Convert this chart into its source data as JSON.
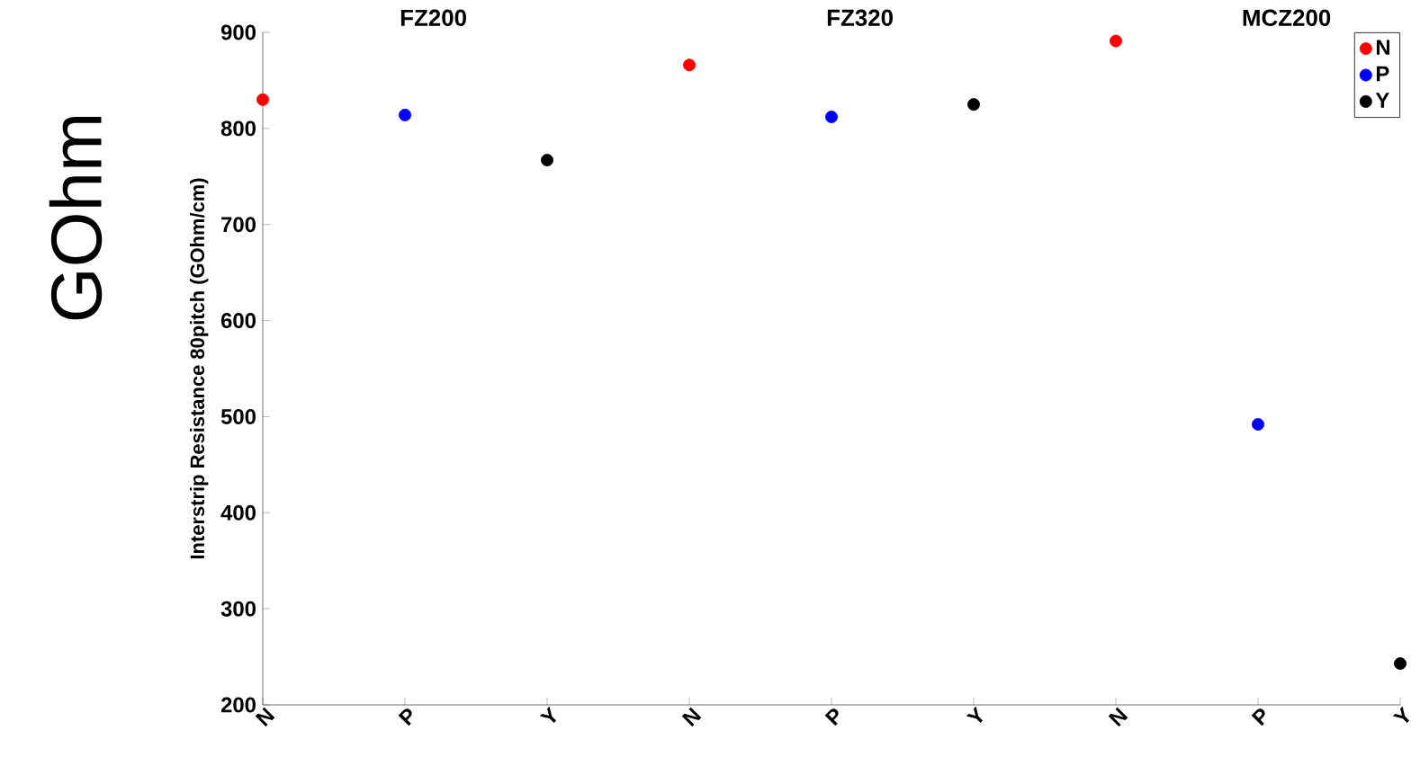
{
  "chart_data": {
    "type": "scatter",
    "ylabel": "Interstrip Resistance 80pitch (GOhm/cm)",
    "categories": [
      "N",
      "P",
      "Y",
      "N",
      "P",
      "Y",
      "N",
      "P",
      "Y"
    ],
    "series": [
      {
        "name": "N",
        "color": "#ff0000",
        "values": [
          830,
          null,
          null,
          866,
          null,
          null,
          891,
          null,
          null
        ]
      },
      {
        "name": "P",
        "color": "#0000ff",
        "values": [
          null,
          814,
          null,
          null,
          812,
          null,
          null,
          492,
          null
        ]
      },
      {
        "name": "Y",
        "color": "#000000",
        "values": [
          null,
          null,
          767,
          null,
          null,
          825,
          null,
          null,
          243
        ]
      }
    ],
    "ylim": [
      200,
      900
    ],
    "yticks": [
      200,
      300,
      400,
      500,
      600,
      700,
      800,
      900
    ],
    "marker": "circle",
    "legend": "top right",
    "grid": false,
    "annotations": [
      "FZ200",
      "FZ320",
      "MCZ200",
      "GOhm"
    ]
  }
}
